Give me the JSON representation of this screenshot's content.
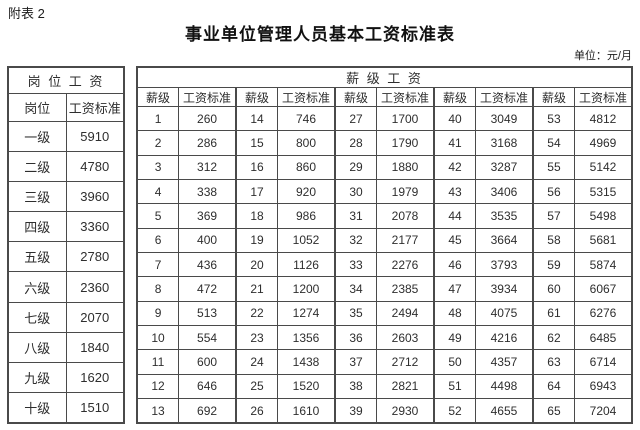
{
  "page": {
    "annotation": "附表 2",
    "title": "事业单位管理人员基本工资标准表",
    "unit_label": "单位：元/月"
  },
  "position_table": {
    "header": "岗 位 工 资",
    "columns": [
      "岗位",
      "工资标准"
    ],
    "rows": [
      [
        "一级",
        "5910"
      ],
      [
        "二级",
        "4780"
      ],
      [
        "三级",
        "3960"
      ],
      [
        "四级",
        "3360"
      ],
      [
        "五级",
        "2780"
      ],
      [
        "六级",
        "2360"
      ],
      [
        "七级",
        "2070"
      ],
      [
        "八级",
        "1840"
      ],
      [
        "九级",
        "1620"
      ],
      [
        "十级",
        "1510"
      ]
    ]
  },
  "grade_table": {
    "header": "薪 级 工 资",
    "column_pair": [
      "薪级",
      "工资标准"
    ],
    "pair_count": 5,
    "rows": [
      [
        "1",
        "260",
        "14",
        "746",
        "27",
        "1700",
        "40",
        "3049",
        "53",
        "4812"
      ],
      [
        "2",
        "286",
        "15",
        "800",
        "28",
        "1790",
        "41",
        "3168",
        "54",
        "4969"
      ],
      [
        "3",
        "312",
        "16",
        "860",
        "29",
        "1880",
        "42",
        "3287",
        "55",
        "5142"
      ],
      [
        "4",
        "338",
        "17",
        "920",
        "30",
        "1979",
        "43",
        "3406",
        "56",
        "5315"
      ],
      [
        "5",
        "369",
        "18",
        "986",
        "31",
        "2078",
        "44",
        "3535",
        "57",
        "5498"
      ],
      [
        "6",
        "400",
        "19",
        "1052",
        "32",
        "2177",
        "45",
        "3664",
        "58",
        "5681"
      ],
      [
        "7",
        "436",
        "20",
        "1126",
        "33",
        "2276",
        "46",
        "3793",
        "59",
        "5874"
      ],
      [
        "8",
        "472",
        "21",
        "1200",
        "34",
        "2385",
        "47",
        "3934",
        "60",
        "6067"
      ],
      [
        "9",
        "513",
        "22",
        "1274",
        "35",
        "2494",
        "48",
        "4075",
        "61",
        "6276"
      ],
      [
        "10",
        "554",
        "23",
        "1356",
        "36",
        "2603",
        "49",
        "4216",
        "62",
        "6485"
      ],
      [
        "11",
        "600",
        "24",
        "1438",
        "37",
        "2712",
        "50",
        "4357",
        "63",
        "6714"
      ],
      [
        "12",
        "646",
        "25",
        "1520",
        "38",
        "2821",
        "51",
        "4498",
        "64",
        "6943"
      ],
      [
        "13",
        "692",
        "26",
        "1610",
        "39",
        "2930",
        "52",
        "4655",
        "65",
        "7204"
      ]
    ]
  }
}
